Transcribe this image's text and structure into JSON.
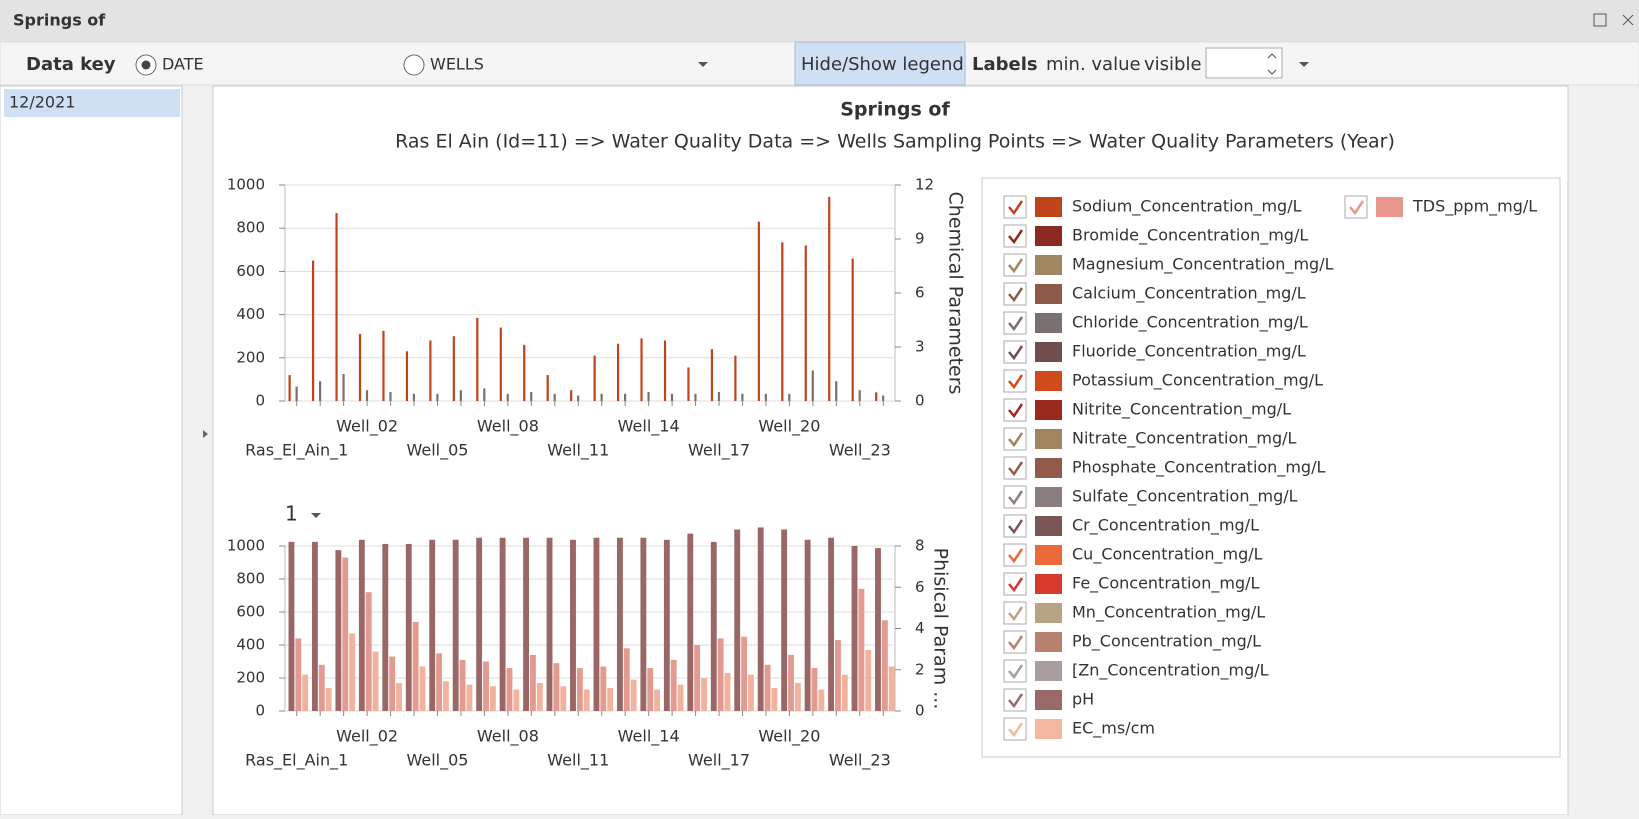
{
  "window": {
    "title": "Springs of"
  },
  "toolbar": {
    "data_key": "Data key",
    "option_date": "DATE",
    "option_wells": "WELLS",
    "legend_button": "Hide/Show legend",
    "labels": "Labels",
    "min_value": "min. value",
    "visible": "visible"
  },
  "list": {
    "items": [
      "12/2021"
    ]
  },
  "panel": {
    "title": "Springs of",
    "subtitle": "Ras El Ain (Id=11) => Water Quality Data => Wells Sampling Points => Water Quality Parameters (Year)",
    "selector": "1"
  },
  "chart_data": [
    {
      "type": "bar",
      "categories": [
        "Ras_El_Ain_1",
        null,
        null,
        "Well_02",
        null,
        null,
        "Well_05",
        null,
        null,
        "Well_08",
        null,
        null,
        "Well_11",
        null,
        null,
        "Well_14",
        null,
        null,
        "Well_17",
        null,
        null,
        "Well_20",
        null,
        null,
        "Well_23",
        null
      ],
      "ylim": [
        0,
        1000
      ],
      "yticks": [
        0,
        200,
        400,
        600,
        800,
        1000
      ],
      "y2lim": [
        0,
        12
      ],
      "y2ticks": [
        0,
        3,
        6,
        9,
        12
      ],
      "y2_label": "Chemical Parameters",
      "grid": true,
      "series": [
        {
          "color": "#c0441a",
          "values": [
            120,
            650,
            870,
            310,
            325,
            230,
            280,
            300,
            385,
            340,
            260,
            120,
            50,
            210,
            265,
            290,
            280,
            155,
            240,
            210,
            830,
            735,
            720,
            945,
            660,
            40
          ]
        },
        {
          "color": "#7a7070",
          "axis": "y2",
          "values": [
            0.8,
            1.1,
            1.5,
            0.6,
            0.5,
            0.4,
            0.4,
            0.6,
            0.7,
            0.4,
            0.5,
            0.4,
            0.3,
            0.4,
            0.4,
            0.5,
            0.4,
            0.4,
            0.5,
            0.4,
            0.4,
            0.4,
            1.7,
            1.1,
            0.6,
            0.3
          ]
        }
      ]
    },
    {
      "type": "bar",
      "categories": [
        "Ras_El_Ain_1",
        null,
        null,
        "Well_02",
        null,
        null,
        "Well_05",
        null,
        null,
        "Well_08",
        null,
        null,
        "Well_11",
        null,
        null,
        "Well_14",
        null,
        null,
        "Well_17",
        null,
        null,
        "Well_20",
        null,
        null,
        "Well_23",
        null
      ],
      "ylim": [
        0,
        1000
      ],
      "yticks": [
        0,
        200,
        400,
        600,
        800,
        1000
      ],
      "y2lim": [
        0,
        8
      ],
      "y2ticks": [
        0,
        2,
        4,
        6,
        8
      ],
      "y2_label": "Phisical Param ...",
      "grid": true,
      "series": [
        {
          "color": "#9a6666",
          "axis": "y2",
          "values": [
            8.2,
            8.2,
            7.8,
            8.3,
            8.1,
            8.1,
            8.3,
            8.3,
            8.4,
            8.4,
            8.4,
            8.4,
            8.3,
            8.4,
            8.4,
            8.4,
            8.3,
            8.6,
            8.2,
            8.8,
            8.9,
            8.8,
            8.3,
            8.4,
            8.0,
            7.9
          ]
        },
        {
          "color": "#e39a90",
          "values": [
            440,
            280,
            930,
            720,
            330,
            540,
            350,
            310,
            300,
            260,
            340,
            290,
            260,
            270,
            380,
            260,
            310,
            400,
            440,
            450,
            280,
            340,
            260,
            430,
            740,
            550
          ]
        },
        {
          "color": "#f2b39e",
          "values": [
            220,
            140,
            470,
            360,
            170,
            270,
            180,
            160,
            150,
            130,
            170,
            150,
            130,
            140,
            190,
            130,
            160,
            200,
            230,
            220,
            140,
            170,
            130,
            220,
            370,
            270
          ]
        }
      ]
    }
  ],
  "legend": {
    "items": [
      {
        "label": "Sodium_Concentration_mg/L",
        "color": "#c0441a"
      },
      {
        "label": "Bromide_Concentration_mg/L",
        "color": "#8b2a22"
      },
      {
        "label": "Magnesium_Concentration_mg/L",
        "color": "#a08662"
      },
      {
        "label": "Calcium_Concentration_mg/L",
        "color": "#8e5a48"
      },
      {
        "label": "Chloride_Concentration_mg/L",
        "color": "#7a7070"
      },
      {
        "label": "Fluoride_Concentration_mg/L",
        "color": "#6e4e4e"
      },
      {
        "label": "Potassium_Concentration_mg/L",
        "color": "#d04a1a"
      },
      {
        "label": "Nitrite_Concentration_mg/L",
        "color": "#9a2a1e"
      },
      {
        "label": "Nitrate_Concentration_mg/L",
        "color": "#a0855e"
      },
      {
        "label": "Phosphate_Concentration_mg/L",
        "color": "#925a4a"
      },
      {
        "label": "Sulfate_Concentration_mg/L",
        "color": "#8a7e7e"
      },
      {
        "label": "Cr_Concentration_mg/L",
        "color": "#7a5656"
      },
      {
        "label": "Cu_Concentration_mg/L",
        "color": "#ea6a3a"
      },
      {
        "label": "Fe_Concentration_mg/L",
        "color": "#d83a2e"
      },
      {
        "label": "Mn_Concentration_mg/L",
        "color": "#b8a484"
      },
      {
        "label": "Pb_Concentration_mg/L",
        "color": "#b8806e"
      },
      {
        "label": "[Zn_Concentration_mg/L",
        "color": "#a89e9e"
      },
      {
        "label": "pH",
        "color": "#9a6a6a"
      },
      {
        "label": "EC_ms/cm",
        "color": "#f4b8a2"
      },
      {
        "label": "TDS_ppm_mg/L",
        "color": "#e8968c"
      }
    ]
  }
}
